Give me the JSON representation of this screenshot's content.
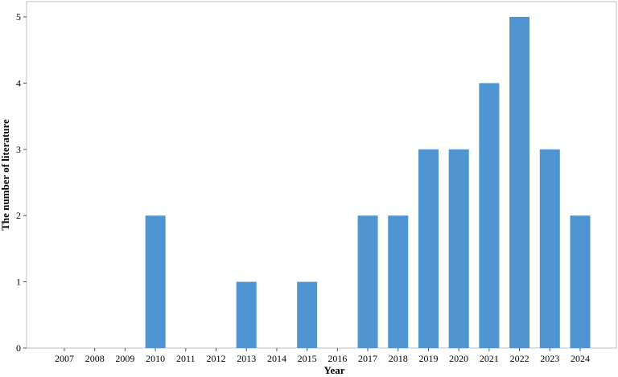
{
  "chart_data": {
    "type": "bar",
    "categories": [
      "2007",
      "2008",
      "2009",
      "2010",
      "2011",
      "2012",
      "2013",
      "2014",
      "2015",
      "2016",
      "2017",
      "2018",
      "2019",
      "2020",
      "2021",
      "2022",
      "2023",
      "2024"
    ],
    "values": [
      0,
      0,
      0,
      2,
      0,
      0,
      1,
      0,
      1,
      0,
      2,
      2,
      3,
      3,
      4,
      5,
      3,
      2
    ],
    "xlabel": "Year",
    "ylabel": "The number of literature",
    "ylim": [
      0,
      5
    ],
    "yticks": [
      0,
      1,
      2,
      3,
      4,
      5
    ],
    "grid": false,
    "bar_color": "#4f95d1",
    "frame_color": "#bdbdbd"
  }
}
